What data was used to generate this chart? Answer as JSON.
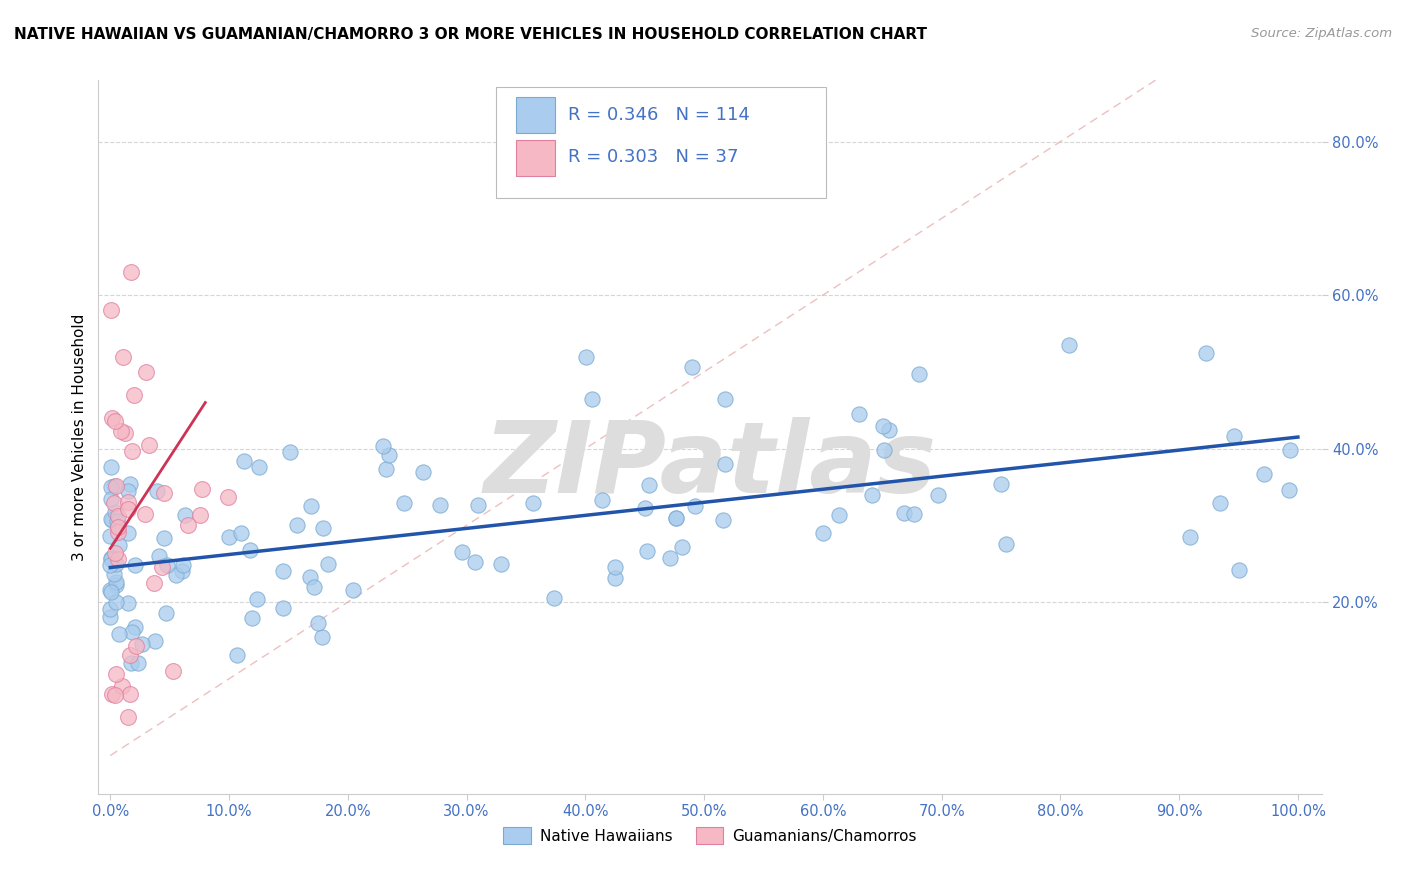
{
  "title": "NATIVE HAWAIIAN VS GUAMANIAN/CHAMORRO 3 OR MORE VEHICLES IN HOUSEHOLD CORRELATION CHART",
  "source": "Source: ZipAtlas.com",
  "ylabel": "3 or more Vehicles in Household",
  "nh_R": 0.346,
  "nh_N": 114,
  "gc_R": 0.303,
  "gc_N": 37,
  "nh_color": "#aaccee",
  "gc_color": "#f5b8c4",
  "nh_edge_color": "#7aaad0",
  "gc_edge_color": "#e080a0",
  "nh_line_color": "#2255aa",
  "gc_line_color": "#cc3355",
  "diag_color": "#ddaaaa",
  "bg_color": "#ffffff",
  "grid_color": "#cccccc",
  "tick_color": "#4472c4",
  "title_color": "#000000",
  "source_color": "#999999",
  "legend_text_color": "#4472c4",
  "watermark_text": "ZIPatlas",
  "watermark_color": "#dddddd",
  "xlim_min": -0.01,
  "xlim_max": 1.02,
  "ylim_min": -0.05,
  "ylim_max": 0.88,
  "nh_line_x0": 0.0,
  "nh_line_y0": 0.245,
  "nh_line_x1": 1.0,
  "nh_line_y1": 0.415,
  "gc_line_x0": 0.0,
  "gc_line_y0": 0.27,
  "gc_line_x1": 0.08,
  "gc_line_y1": 0.46
}
